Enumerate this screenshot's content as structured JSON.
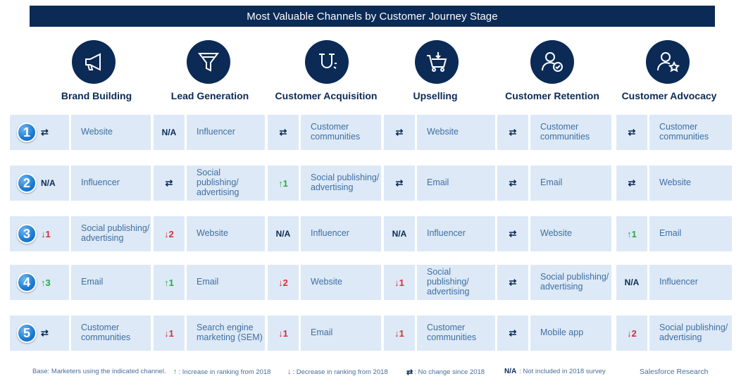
{
  "title": "Most Valuable Channels by Customer Journey Stage",
  "stages": [
    {
      "label": "Brand Building",
      "icon": "megaphone-icon"
    },
    {
      "label": "Lead Generation",
      "icon": "funnel-icon"
    },
    {
      "label": "Customer Acquisition",
      "icon": "magnet-icon"
    },
    {
      "label": "Upselling",
      "icon": "shopping-cart-icon"
    },
    {
      "label": "Customer Retention",
      "icon": "user-check-icon"
    },
    {
      "label": "Customer Advocacy",
      "icon": "user-star-icon"
    }
  ],
  "rows": [
    {
      "rank": "1",
      "cells": [
        {
          "mark": "⇄",
          "trend": "same",
          "channel": "Website"
        },
        {
          "mark": "N/A",
          "trend": "na",
          "channel": "Influencer"
        },
        {
          "mark": "⇄",
          "trend": "same",
          "channel": "Customer communities"
        },
        {
          "mark": "⇄",
          "trend": "same",
          "channel": "Website"
        },
        {
          "mark": "⇄",
          "trend": "same",
          "channel": "Customer communities"
        },
        {
          "mark": "⇄",
          "trend": "same",
          "channel": "Customer communities"
        }
      ]
    },
    {
      "rank": "2",
      "cells": [
        {
          "mark": "N/A",
          "trend": "na",
          "channel": "Influencer"
        },
        {
          "mark": "⇄",
          "trend": "same",
          "channel": "Social publishing/ advertising"
        },
        {
          "mark": "↑1",
          "trend": "up",
          "channel": "Social publishing/ advertising"
        },
        {
          "mark": "⇄",
          "trend": "same",
          "channel": "Email"
        },
        {
          "mark": "⇄",
          "trend": "same",
          "channel": "Email"
        },
        {
          "mark": "⇄",
          "trend": "same",
          "channel": "Website"
        }
      ]
    },
    {
      "rank": "3",
      "cells": [
        {
          "mark": "↓1",
          "trend": "down",
          "channel": "Social publishing/ advertising"
        },
        {
          "mark": "↓2",
          "trend": "down",
          "channel": "Website"
        },
        {
          "mark": "N/A",
          "trend": "na",
          "channel": "Influencer"
        },
        {
          "mark": "N/A",
          "trend": "na",
          "channel": "Influencer"
        },
        {
          "mark": "⇄",
          "trend": "same",
          "channel": "Website"
        },
        {
          "mark": "↑1",
          "trend": "up",
          "channel": "Email"
        }
      ]
    },
    {
      "rank": "4",
      "cells": [
        {
          "mark": "↑3",
          "trend": "up",
          "channel": "Email"
        },
        {
          "mark": "↑1",
          "trend": "up",
          "channel": "Email"
        },
        {
          "mark": "↓2",
          "trend": "down",
          "channel": "Website"
        },
        {
          "mark": "↓1",
          "trend": "down",
          "channel": "Social publishing/ advertising"
        },
        {
          "mark": "⇄",
          "trend": "same",
          "channel": "Social publishing/ advertising"
        },
        {
          "mark": "N/A",
          "trend": "na",
          "channel": "Influencer"
        }
      ]
    },
    {
      "rank": "5",
      "cells": [
        {
          "mark": "⇄",
          "trend": "same",
          "channel": "Customer communities"
        },
        {
          "mark": "↓1",
          "trend": "down",
          "channel": "Search engine marketing (SEM)"
        },
        {
          "mark": "↓1",
          "trend": "down",
          "channel": "Email"
        },
        {
          "mark": "↓1",
          "trend": "down",
          "channel": "Customer communities"
        },
        {
          "mark": "⇄",
          "trend": "same",
          "channel": "Mobile app"
        },
        {
          "mark": "↓2",
          "trend": "down",
          "channel": "Social publishing/ advertising"
        }
      ]
    }
  ],
  "footer": {
    "base": "Base: Marketers using the indicated channel.",
    "up_symbol": "↑",
    "up_text": ": Increase in ranking from 2018",
    "down_symbol": "↓",
    "down_text": ": Decrease in ranking from 2018",
    "same_symbol": "⇄",
    "same_text": ": No change since 2018",
    "na_symbol": "N/A",
    "na_text": ": Not included in 2018 survey",
    "source": "Salesforce Research"
  },
  "colors": {
    "navy": "#0b2a56",
    "cell_bg": "#dde9f6",
    "up": "#2aa84a",
    "down": "#d0303a",
    "rank_blue": "#1e7fd6"
  }
}
